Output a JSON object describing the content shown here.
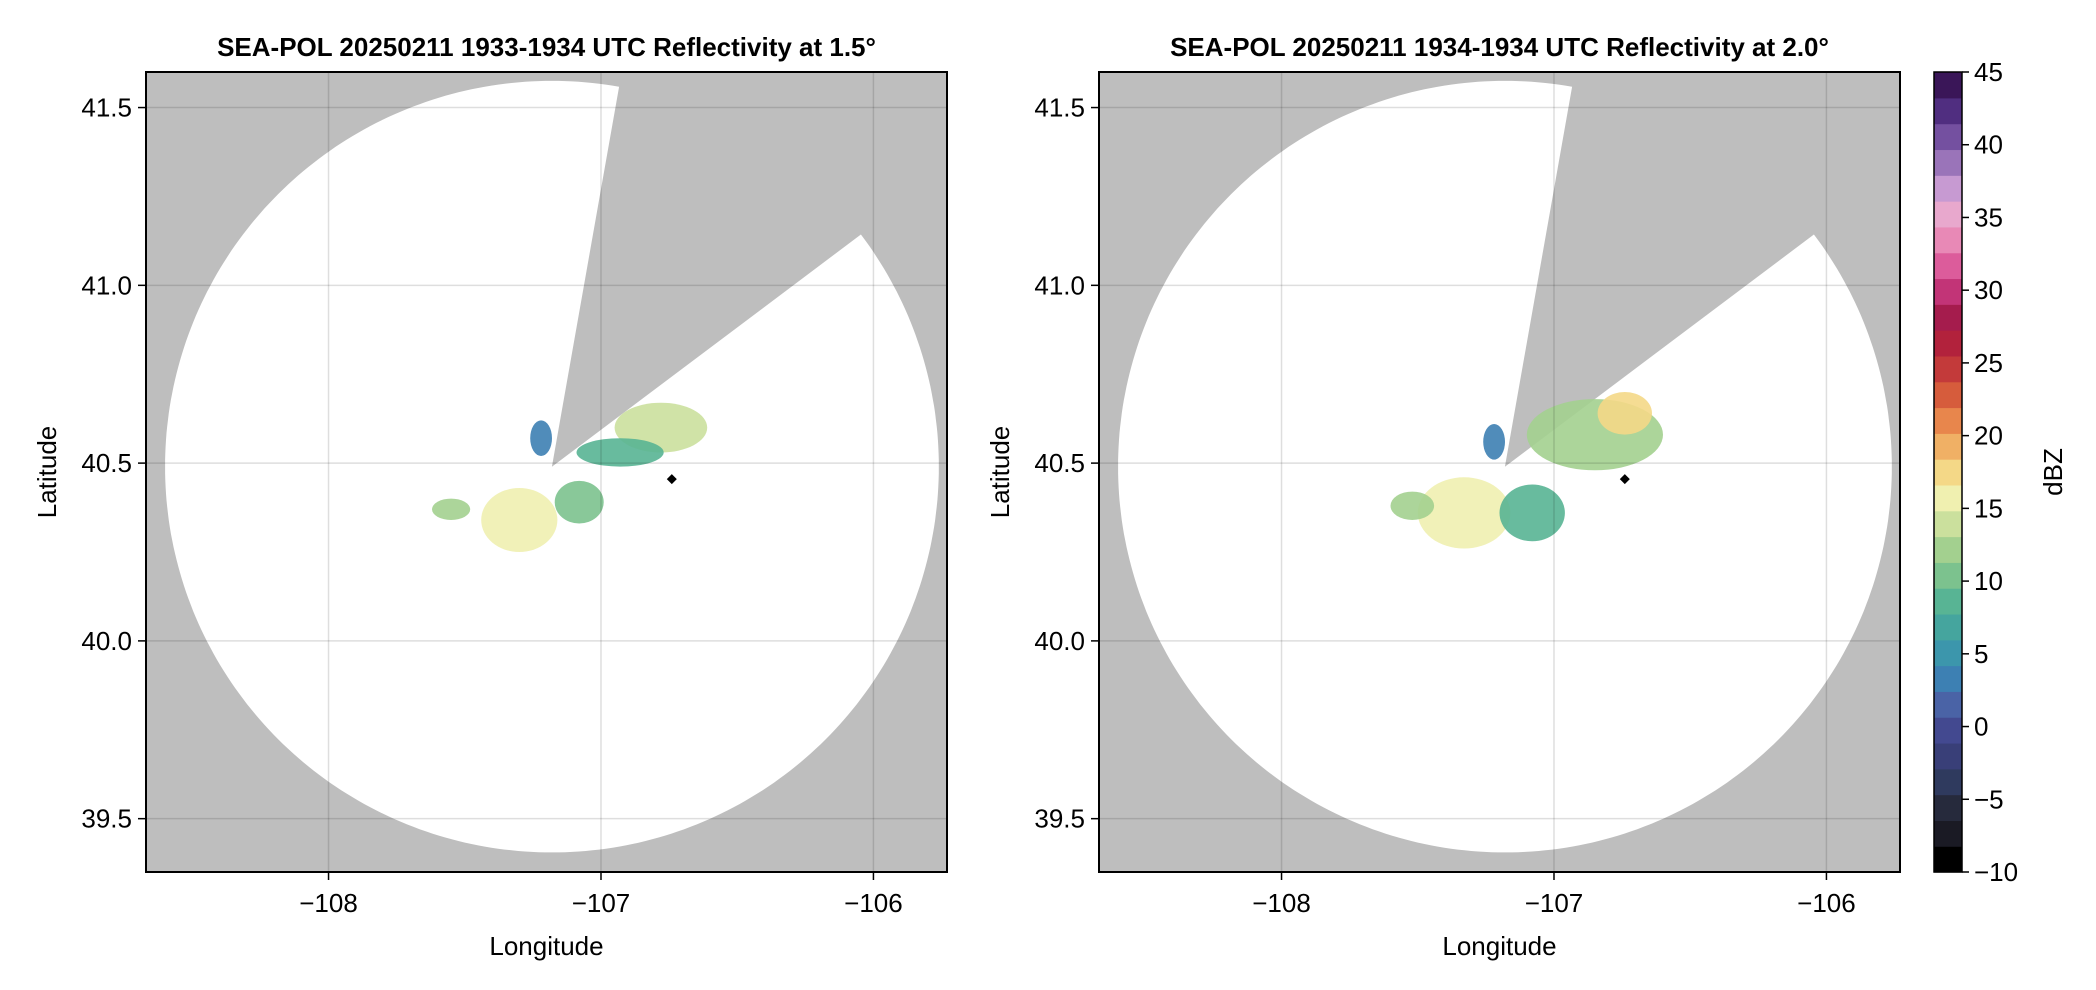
{
  "chart_data": [
    {
      "type": "heatmap",
      "title": "SEA-POL 20250211 1933-1934 UTC Reflectivity at 1.5°",
      "xlabel": "Longitude",
      "ylabel": "Latitude",
      "xlim": [
        -108.67,
        -105.73
      ],
      "ylim": [
        39.35,
        41.6
      ],
      "x_ticks": [
        -108,
        -107,
        -106
      ],
      "x_tick_labels": [
        "−108",
        "−107",
        "−106"
      ],
      "y_ticks": [
        39.5,
        40.0,
        40.5,
        41.0,
        41.5
      ],
      "y_tick_labels": [
        "39.5",
        "40.0",
        "40.5",
        "41.0",
        "41.5"
      ],
      "grid": true,
      "background_color": "#bebebe",
      "radar": {
        "center_lon": -107.18,
        "center_lat": 40.49,
        "range_lon_deg": 1.42,
        "range_lat_deg": 1.085,
        "blocked_sector_deg": [
          10,
          53
        ]
      },
      "marker": {
        "lon": -106.74,
        "lat": 40.455
      },
      "echo_regions": [
        {
          "lon": -106.78,
          "lat": 40.6,
          "dbz": 14,
          "size_lon": 0.17,
          "size_lat": 0.07
        },
        {
          "lon": -106.93,
          "lat": 40.53,
          "dbz": 8,
          "size_lon": 0.16,
          "size_lat": 0.04
        },
        {
          "lon": -107.3,
          "lat": 40.34,
          "dbz": 15,
          "size_lon": 0.14,
          "size_lat": 0.09
        },
        {
          "lon": -107.08,
          "lat": 40.39,
          "dbz": 11,
          "size_lon": 0.09,
          "size_lat": 0.06
        },
        {
          "lon": -107.55,
          "lat": 40.37,
          "dbz": 13,
          "size_lon": 0.07,
          "size_lat": 0.03
        },
        {
          "lon": -107.22,
          "lat": 40.57,
          "dbz": 3,
          "size_lon": 0.04,
          "size_lat": 0.05
        }
      ]
    },
    {
      "type": "heatmap",
      "title": "SEA-POL 20250211 1934-1934 UTC Reflectivity at 2.0°",
      "xlabel": "Longitude",
      "ylabel": "Latitude",
      "xlim": [
        -108.67,
        -105.73
      ],
      "ylim": [
        39.35,
        41.6
      ],
      "x_ticks": [
        -108,
        -107,
        -106
      ],
      "x_tick_labels": [
        "−108",
        "−107",
        "−106"
      ],
      "y_ticks": [
        39.5,
        40.0,
        40.5,
        41.0,
        41.5
      ],
      "y_tick_labels": [
        "39.5",
        "40.0",
        "40.5",
        "41.0",
        "41.5"
      ],
      "grid": true,
      "background_color": "#bebebe",
      "radar": {
        "center_lon": -107.18,
        "center_lat": 40.49,
        "range_lon_deg": 1.42,
        "range_lat_deg": 1.085,
        "blocked_sector_deg": [
          10,
          53
        ]
      },
      "marker": {
        "lon": -106.74,
        "lat": 40.455
      },
      "echo_regions": [
        {
          "lon": -106.85,
          "lat": 40.58,
          "dbz": 13,
          "size_lon": 0.25,
          "size_lat": 0.1
        },
        {
          "lon": -106.74,
          "lat": 40.64,
          "dbz": 17,
          "size_lon": 0.1,
          "size_lat": 0.06
        },
        {
          "lon": -107.33,
          "lat": 40.36,
          "dbz": 15,
          "size_lon": 0.17,
          "size_lat": 0.1
        },
        {
          "lon": -107.08,
          "lat": 40.36,
          "dbz": 9,
          "size_lon": 0.12,
          "size_lat": 0.08
        },
        {
          "lon": -107.52,
          "lat": 40.38,
          "dbz": 12,
          "size_lon": 0.08,
          "size_lat": 0.04
        },
        {
          "lon": -107.22,
          "lat": 40.56,
          "dbz": 3,
          "size_lon": 0.04,
          "size_lat": 0.05
        }
      ]
    }
  ],
  "colorbar": {
    "label": "dBZ",
    "min": -10,
    "max": 45,
    "ticks": [
      -10,
      -5,
      0,
      5,
      10,
      15,
      20,
      25,
      30,
      35,
      40,
      45
    ],
    "tick_labels": [
      "−10",
      "−5",
      "0",
      "5",
      "10",
      "15",
      "20",
      "25",
      "30",
      "35",
      "40",
      "45"
    ],
    "colors": [
      "#000000",
      "#1a1a24",
      "#262a3c",
      "#2f3a5e",
      "#393f78",
      "#434990",
      "#4a63a6",
      "#3d80b3",
      "#3c96ac",
      "#45a59e",
      "#58b494",
      "#7cc28e",
      "#a3d08f",
      "#cbe09d",
      "#f0f0b0",
      "#f4d887",
      "#f0b065",
      "#e8864c",
      "#d65c3c",
      "#c33a3a",
      "#b2223c",
      "#a51c4d",
      "#c23477",
      "#dc5c9b",
      "#e889b6",
      "#e8a8cd",
      "#c79ad2",
      "#9a74b9",
      "#7450a0",
      "#502e80",
      "#3a1658"
    ]
  }
}
